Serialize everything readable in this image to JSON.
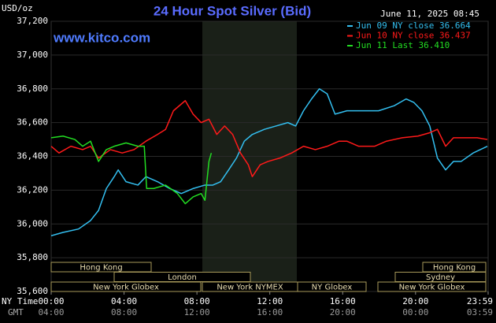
{
  "chart_data": {
    "type": "line",
    "title": "24 Hour Spot Silver (Bid)",
    "subtitle": "June 11, 2025 08:45",
    "y_label": "USD/oz",
    "source": "www.kitco.com",
    "x_label": "NY Time",
    "x2_label": "GMT",
    "xlim": [
      0,
      23.983
    ],
    "xticks": [
      {
        "value": 0,
        "label": "00:00"
      },
      {
        "value": 4,
        "label": "04:00"
      },
      {
        "value": 8,
        "label": "08:00"
      },
      {
        "value": 12,
        "label": "12:00"
      },
      {
        "value": 16,
        "label": "16:00"
      },
      {
        "value": 20,
        "label": "20:00"
      },
      {
        "value": 23.983,
        "label": "23:59"
      }
    ],
    "gmt_labels": [
      "04:00",
      "08:00",
      "12:00",
      "16:00",
      "20:00",
      "00:00",
      "03:59"
    ],
    "ylim": [
      35.6,
      37.2
    ],
    "yticks": [
      {
        "value": 35.6,
        "label": "35,600"
      },
      {
        "value": 35.8,
        "label": "35,800"
      },
      {
        "value": 36.0,
        "label": "36,000"
      },
      {
        "value": 36.2,
        "label": "36,200"
      },
      {
        "value": 36.4,
        "label": "36,400"
      },
      {
        "value": 36.6,
        "label": "36,600"
      },
      {
        "value": 36.8,
        "label": "36,800"
      },
      {
        "value": 37.0,
        "label": "37,000"
      },
      {
        "value": 37.2,
        "label": "37,200"
      }
    ],
    "grid": true,
    "sessions": [
      "Hong Kong",
      "London",
      "New York Globex",
      "New York NYMEX",
      "NY Globex",
      "Sydney",
      "Hong Kong",
      "New York Globex"
    ],
    "series": [
      {
        "name": "Jun 09 NY close 36.664",
        "color": "#33bff0",
        "x": [
          0,
          0.65,
          1.5,
          2.16,
          2.6,
          3.03,
          3.46,
          3.68,
          4.11,
          4.76,
          5.2,
          5.84,
          6.5,
          7.14,
          7.8,
          8.44,
          8.87,
          9.3,
          9.74,
          10.17,
          10.6,
          11.04,
          11.7,
          12.34,
          12.99,
          13.42,
          13.85,
          14.29,
          14.72,
          15.15,
          15.58,
          16.23,
          17.1,
          17.97,
          18.83,
          19.48,
          19.9,
          20.35,
          20.78,
          21.2,
          21.65,
          22.08,
          22.5,
          23.16,
          23.94
        ],
        "values": [
          35.93,
          35.95,
          35.97,
          36.02,
          36.08,
          36.21,
          36.28,
          36.32,
          36.25,
          36.23,
          36.28,
          36.25,
          36.21,
          36.18,
          36.21,
          36.23,
          36.23,
          36.25,
          36.32,
          36.39,
          36.49,
          36.53,
          36.56,
          36.58,
          36.6,
          36.58,
          36.67,
          36.74,
          36.8,
          36.77,
          36.65,
          36.67,
          36.67,
          36.67,
          36.7,
          36.74,
          36.72,
          36.67,
          36.58,
          36.39,
          36.32,
          36.37,
          36.37,
          36.42,
          36.46
        ]
      },
      {
        "name": "Jun 10 NY close 36.437",
        "color": "#ff1a1a",
        "x": [
          0,
          0.43,
          1.08,
          1.73,
          2.16,
          2.6,
          3.25,
          3.9,
          4.55,
          5.2,
          5.84,
          6.28,
          6.71,
          7.36,
          7.79,
          8.23,
          8.66,
          9.09,
          9.52,
          9.96,
          10.39,
          10.82,
          11.04,
          11.47,
          11.9,
          12.55,
          13.2,
          13.85,
          14.5,
          15.15,
          15.8,
          16.23,
          16.88,
          17.75,
          18.4,
          19.26,
          20.13,
          20.78,
          21.2,
          21.65,
          22.08,
          22.73,
          23.38,
          23.94
        ],
        "values": [
          36.46,
          36.42,
          36.46,
          36.44,
          36.46,
          36.39,
          36.44,
          36.42,
          36.44,
          36.49,
          36.53,
          36.56,
          36.67,
          36.73,
          36.65,
          36.6,
          36.62,
          36.53,
          36.58,
          36.53,
          36.42,
          36.35,
          36.28,
          36.35,
          36.37,
          36.39,
          36.42,
          36.46,
          36.44,
          36.46,
          36.49,
          36.49,
          36.46,
          36.46,
          36.49,
          36.51,
          36.52,
          36.54,
          36.56,
          36.46,
          36.51,
          36.51,
          36.51,
          36.5
        ]
      },
      {
        "name": "Jun 11 Last 36.410",
        "color": "#22dd22",
        "x": [
          0,
          0.65,
          1.3,
          1.73,
          2.16,
          2.6,
          3.03,
          3.46,
          4.11,
          4.76,
          5.11,
          5.24,
          5.63,
          6.28,
          6.93,
          7.36,
          7.79,
          8.23,
          8.44,
          8.66,
          8.79
        ],
        "values": [
          36.51,
          36.52,
          36.5,
          36.46,
          36.49,
          36.37,
          36.44,
          36.46,
          36.48,
          36.46,
          36.46,
          36.21,
          36.21,
          36.23,
          36.18,
          36.12,
          36.16,
          36.18,
          36.14,
          36.37,
          36.42
        ]
      }
    ]
  }
}
